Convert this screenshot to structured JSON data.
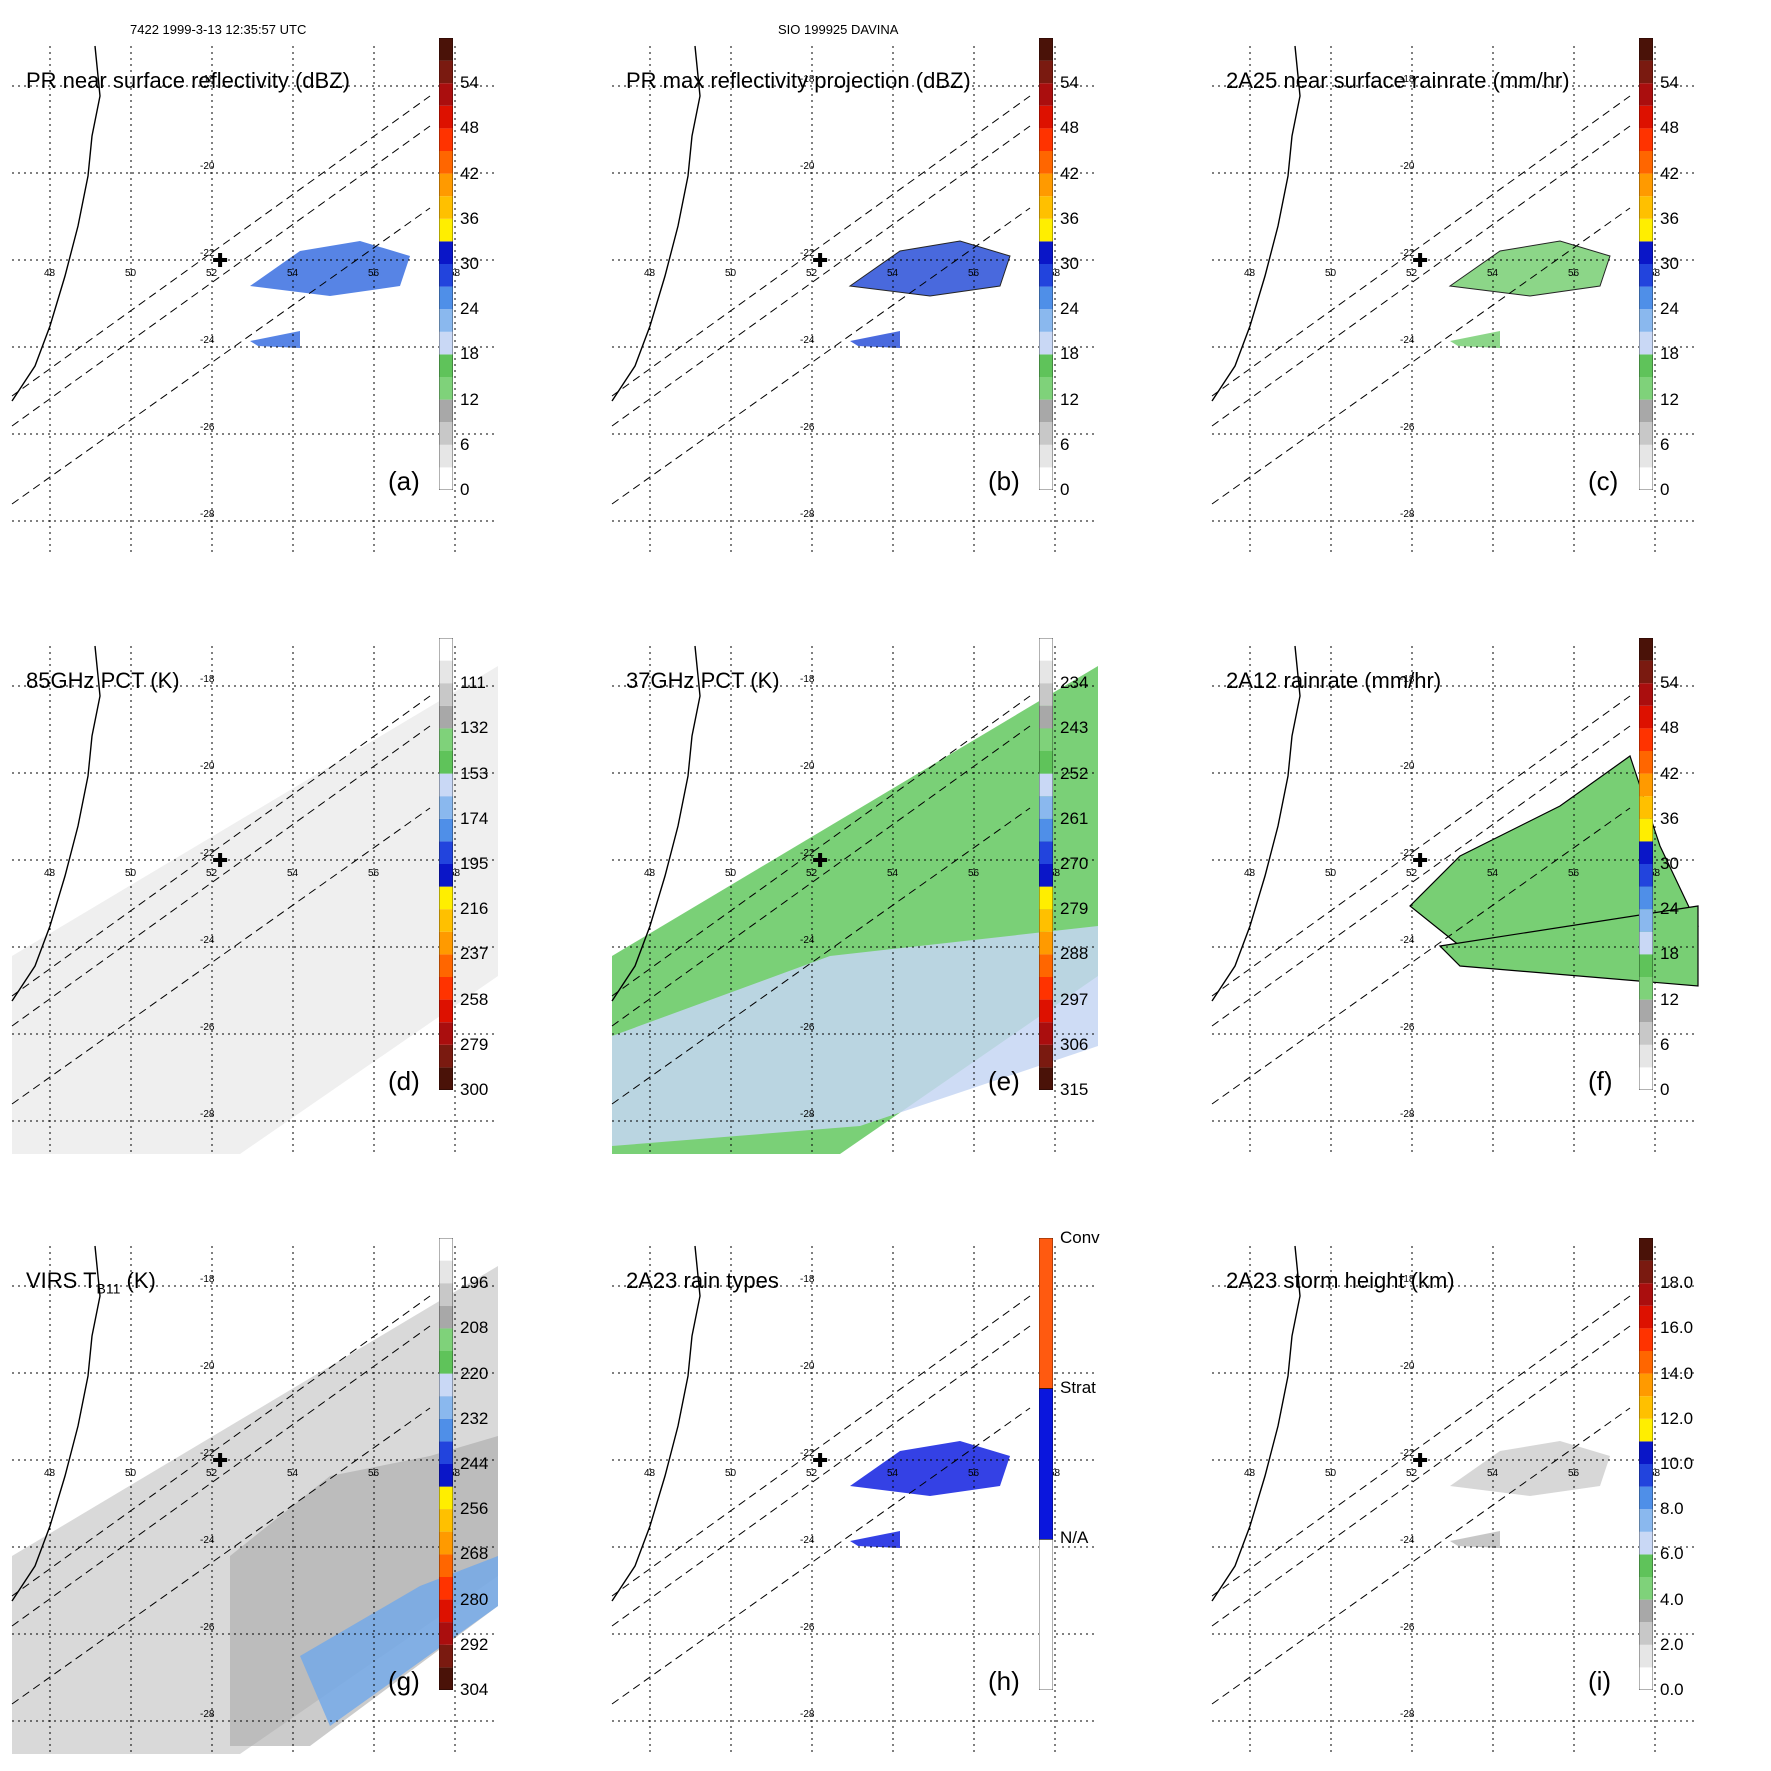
{
  "header": {
    "left": "7422 1999-3-13 12:35:57 UTC",
    "center": "SIO 199925 DAVINA"
  },
  "map": {
    "lat_labels": [
      "-18",
      "-20",
      "-22",
      "-24",
      "-26",
      "-28"
    ],
    "lon_labels": [
      "48",
      "50",
      "52",
      "54",
      "56",
      "58"
    ]
  },
  "palettes": {
    "standard": [
      "#ffffff",
      "#e6e6e6",
      "#c8c8c8",
      "#a8a8a8",
      "#7fd27a",
      "#5fc35a",
      "#c9d8f5",
      "#8ab8ee",
      "#4f8fe8",
      "#2244dd",
      "#0a16c8",
      "#ffee00",
      "#ffc000",
      "#ff9a00",
      "#ff6600",
      "#ff3300",
      "#dd1100",
      "#aa0e0e",
      "#7a1a10",
      "#4a1208"
    ],
    "reversed": [
      "#4a1208",
      "#7a1a10",
      "#aa0e0e",
      "#dd1100",
      "#ff3300",
      "#ff6600",
      "#ff9a00",
      "#ffc000",
      "#ffee00",
      "#0a16c8",
      "#2244dd",
      "#4f8fe8",
      "#8ab8ee",
      "#c9d8f5",
      "#5fc35a",
      "#7fd27a",
      "#a8a8a8",
      "#c8c8c8",
      "#e6e6e6",
      "#ffffff"
    ],
    "raintype": [
      "#ffffff",
      "#0a16dd",
      "#ff5a10"
    ]
  },
  "panels": [
    {
      "id": "a",
      "title": "PR near surface reflectivity (dBZ)",
      "panel_label": "(a)",
      "colorbar_ticks": [
        "0",
        "6",
        "12",
        "18",
        "24",
        "30",
        "36",
        "42",
        "48",
        "54"
      ],
      "palette": "standard",
      "field_color": "#3a6fe0"
    },
    {
      "id": "b",
      "title": "PR max reflectivity projection (dBZ)",
      "panel_label": "(b)",
      "colorbar_ticks": [
        "0",
        "6",
        "12",
        "18",
        "24",
        "30",
        "36",
        "42",
        "48",
        "54"
      ],
      "palette": "standard",
      "field_color": "#2a50d8"
    },
    {
      "id": "c",
      "title": "2A25 near surface rainrate (mm/hr)",
      "panel_label": "(c)",
      "colorbar_ticks": [
        "0",
        "6",
        "12",
        "18",
        "24",
        "30",
        "36",
        "42",
        "48",
        "54"
      ],
      "palette": "standard",
      "field_color": "#78cf74"
    },
    {
      "id": "d",
      "title": "85GHz PCT (K)",
      "panel_label": "(d)",
      "colorbar_ticks": [
        "300",
        "279",
        "258",
        "237",
        "216",
        "195",
        "174",
        "153",
        "132",
        "111"
      ],
      "palette": "reversed",
      "field_color": "#efefef"
    },
    {
      "id": "e",
      "title": "37GHz PCT (K)",
      "panel_label": "(e)",
      "colorbar_ticks": [
        "315",
        "306",
        "297",
        "288",
        "279",
        "270",
        "261",
        "252",
        "243",
        "234"
      ],
      "palette": "reversed",
      "field_color": "#6ccb68"
    },
    {
      "id": "f",
      "title": "2A12 rainrate (mm/hr)",
      "panel_label": "(f)",
      "colorbar_ticks": [
        "0",
        "6",
        "12",
        "18",
        "24",
        "30",
        "36",
        "42",
        "48",
        "54"
      ],
      "palette": "standard",
      "field_color": "#78cf74"
    },
    {
      "id": "g",
      "title": "VIRS T",
      "title_sub": "B11",
      "title_suffix": " (K)",
      "panel_label": "(g)",
      "colorbar_ticks": [
        "304",
        "292",
        "280",
        "268",
        "256",
        "244",
        "232",
        "220",
        "208",
        "196"
      ],
      "palette": "reversed",
      "field_color": "#d9d9d9"
    },
    {
      "id": "h",
      "title": "2A23 rain types",
      "panel_label": "(h)",
      "colorbar_ticks": [
        "N/A",
        "Strat",
        "Conv"
      ],
      "palette": "raintype",
      "field_color": "#1020e0"
    },
    {
      "id": "i",
      "title": "2A23 storm height (km)",
      "panel_label": "(i)",
      "colorbar_ticks": [
        "0.0",
        "2.0",
        "4.0",
        "6.0",
        "8.0",
        "10.0",
        "12.0",
        "14.0",
        "16.0",
        "18.0"
      ],
      "palette": "standard",
      "field_color": "#bdbdbd"
    }
  ]
}
